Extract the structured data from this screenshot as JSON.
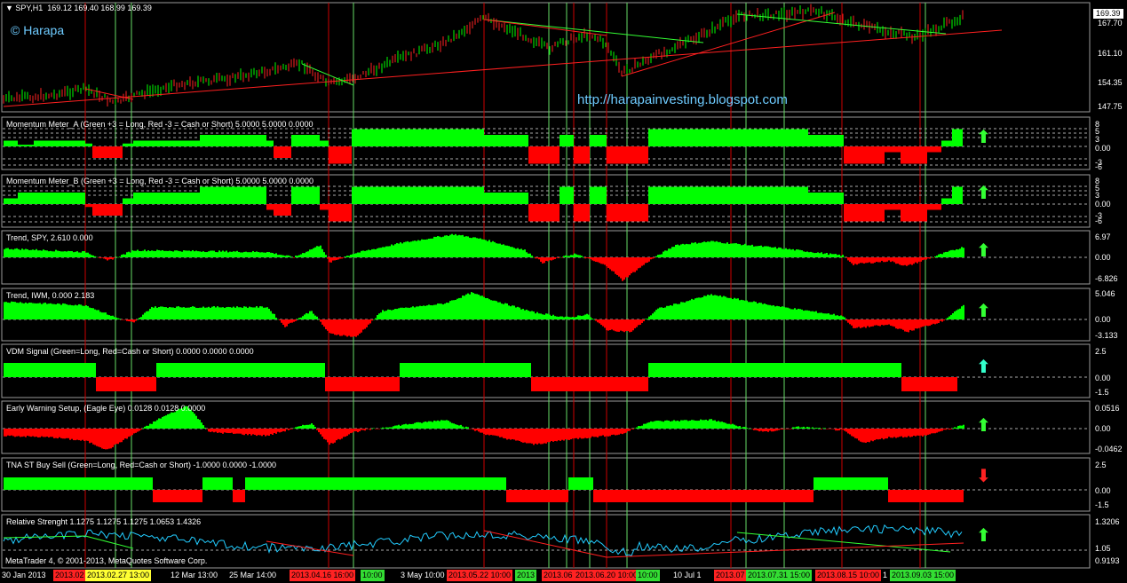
{
  "main": {
    "symbol": "SPY,H1",
    "ohlc": "169.12 169.40 168.99 169.39",
    "current_price": "169.39",
    "watermark": "© Harapa",
    "url": "http://harapainvesting.blogspot.com",
    "axis_ticks": [
      "167.70",
      "161.10",
      "154.35",
      "147.75"
    ]
  },
  "panels": [
    {
      "id": "mm-a",
      "title": "Momentum Meter_A (Green +3 = Long, Red -3 = Cash or Short) 5.0000 5.0000 0.0000",
      "ticks": [
        "8",
        "5",
        "3",
        "0.00",
        "-3",
        "-6"
      ],
      "signal": "up",
      "signal_color": "#33ff33"
    },
    {
      "id": "mm-b",
      "title": "Momentum Meter_B (Green +3 = Long, Red -3 = Cash or Short) 5.0000 5.0000 0.0000",
      "ticks": [
        "8",
        "5",
        "3",
        "0.00",
        "-3",
        "-6"
      ],
      "signal": "up",
      "signal_color": "#33ff33"
    },
    {
      "id": "trend-spy",
      "title": "Trend, SPY,  2.610 0.000",
      "ticks": [
        "6.97",
        "0.00",
        "-6.826"
      ],
      "signal": "up",
      "signal_color": "#33ff33"
    },
    {
      "id": "trend-iwm",
      "title": "Trend, IWM,  0.000 2.183",
      "ticks": [
        "5.046",
        "0.00",
        "-3.133"
      ],
      "signal": "up",
      "signal_color": "#33ff33"
    },
    {
      "id": "vdm",
      "title": "VDM Signal (Green=Long, Red=Cash or Short) 0.0000 0.0000 0.0000",
      "ticks": [
        "2.5",
        "0.00",
        "-1.5"
      ],
      "signal": "up",
      "signal_color": "#33ffcc"
    },
    {
      "id": "ews",
      "title": "Early Warning Setup, (Eagle Eye) 0.0128 0.0128 0.0000",
      "ticks": [
        "0.0516",
        "0.00",
        "-0.0462"
      ],
      "signal": "up",
      "signal_color": "#33ff33"
    },
    {
      "id": "tna",
      "title": "TNA ST Buy Sell (Green=Long, Red=Cash or Short) -1.0000 0.0000 -1.0000",
      "ticks": [
        "2.5",
        "0.00",
        "-1.5"
      ],
      "signal": "down",
      "signal_color": "#ff2222"
    },
    {
      "id": "rs",
      "title": "Relative Strenght 1.1275 1.1275 1.1275 1.0653 1.4326",
      "ticks": [
        "1.3206",
        "1.05",
        "0.9193"
      ],
      "signal": "up",
      "signal_color": "#33ff33"
    }
  ],
  "footer": "MetaTrader 4, © 2001-2013, MetaQuotes Software Corp.",
  "time_axis": [
    {
      "label": "30 Jan 2013",
      "style": "plain"
    },
    {
      "label": "2013.02",
      "style": "red"
    },
    {
      "label": "2013.02.27 13:00",
      "style": "yellow"
    },
    {
      "label": "12 Mar 13:00",
      "style": "plain"
    },
    {
      "label": "25 Mar 14:00",
      "style": "plain"
    },
    {
      "label": "2013.04.16 16:00",
      "style": "red"
    },
    {
      "label": "10:00",
      "style": "green"
    },
    {
      "label": "3 May 10:00",
      "style": "plain"
    },
    {
      "label": "2013.05.22 10:00",
      "style": "red"
    },
    {
      "label": "2013",
      "style": "green"
    },
    {
      "label": "2013.06",
      "style": "red"
    },
    {
      "label": "2013.06.20 10:00",
      "style": "red"
    },
    {
      "label": "10:00",
      "style": "green"
    },
    {
      "label": "10 Jul 1",
      "style": "plain"
    },
    {
      "label": "2013.07",
      "style": "red"
    },
    {
      "label": "2013.07.31 15:00",
      "style": "green"
    },
    {
      "label": "2013.08.15 10:00",
      "style": "red"
    },
    {
      "label": "1",
      "style": "plain"
    },
    {
      "label": "2013.09.03 15:00",
      "style": "green"
    }
  ],
  "colors": {
    "up": "#00ff00",
    "down": "#ff0000",
    "grid": "#888888",
    "vline_red": "#cc0000",
    "vline_green": "#66dd66"
  }
}
